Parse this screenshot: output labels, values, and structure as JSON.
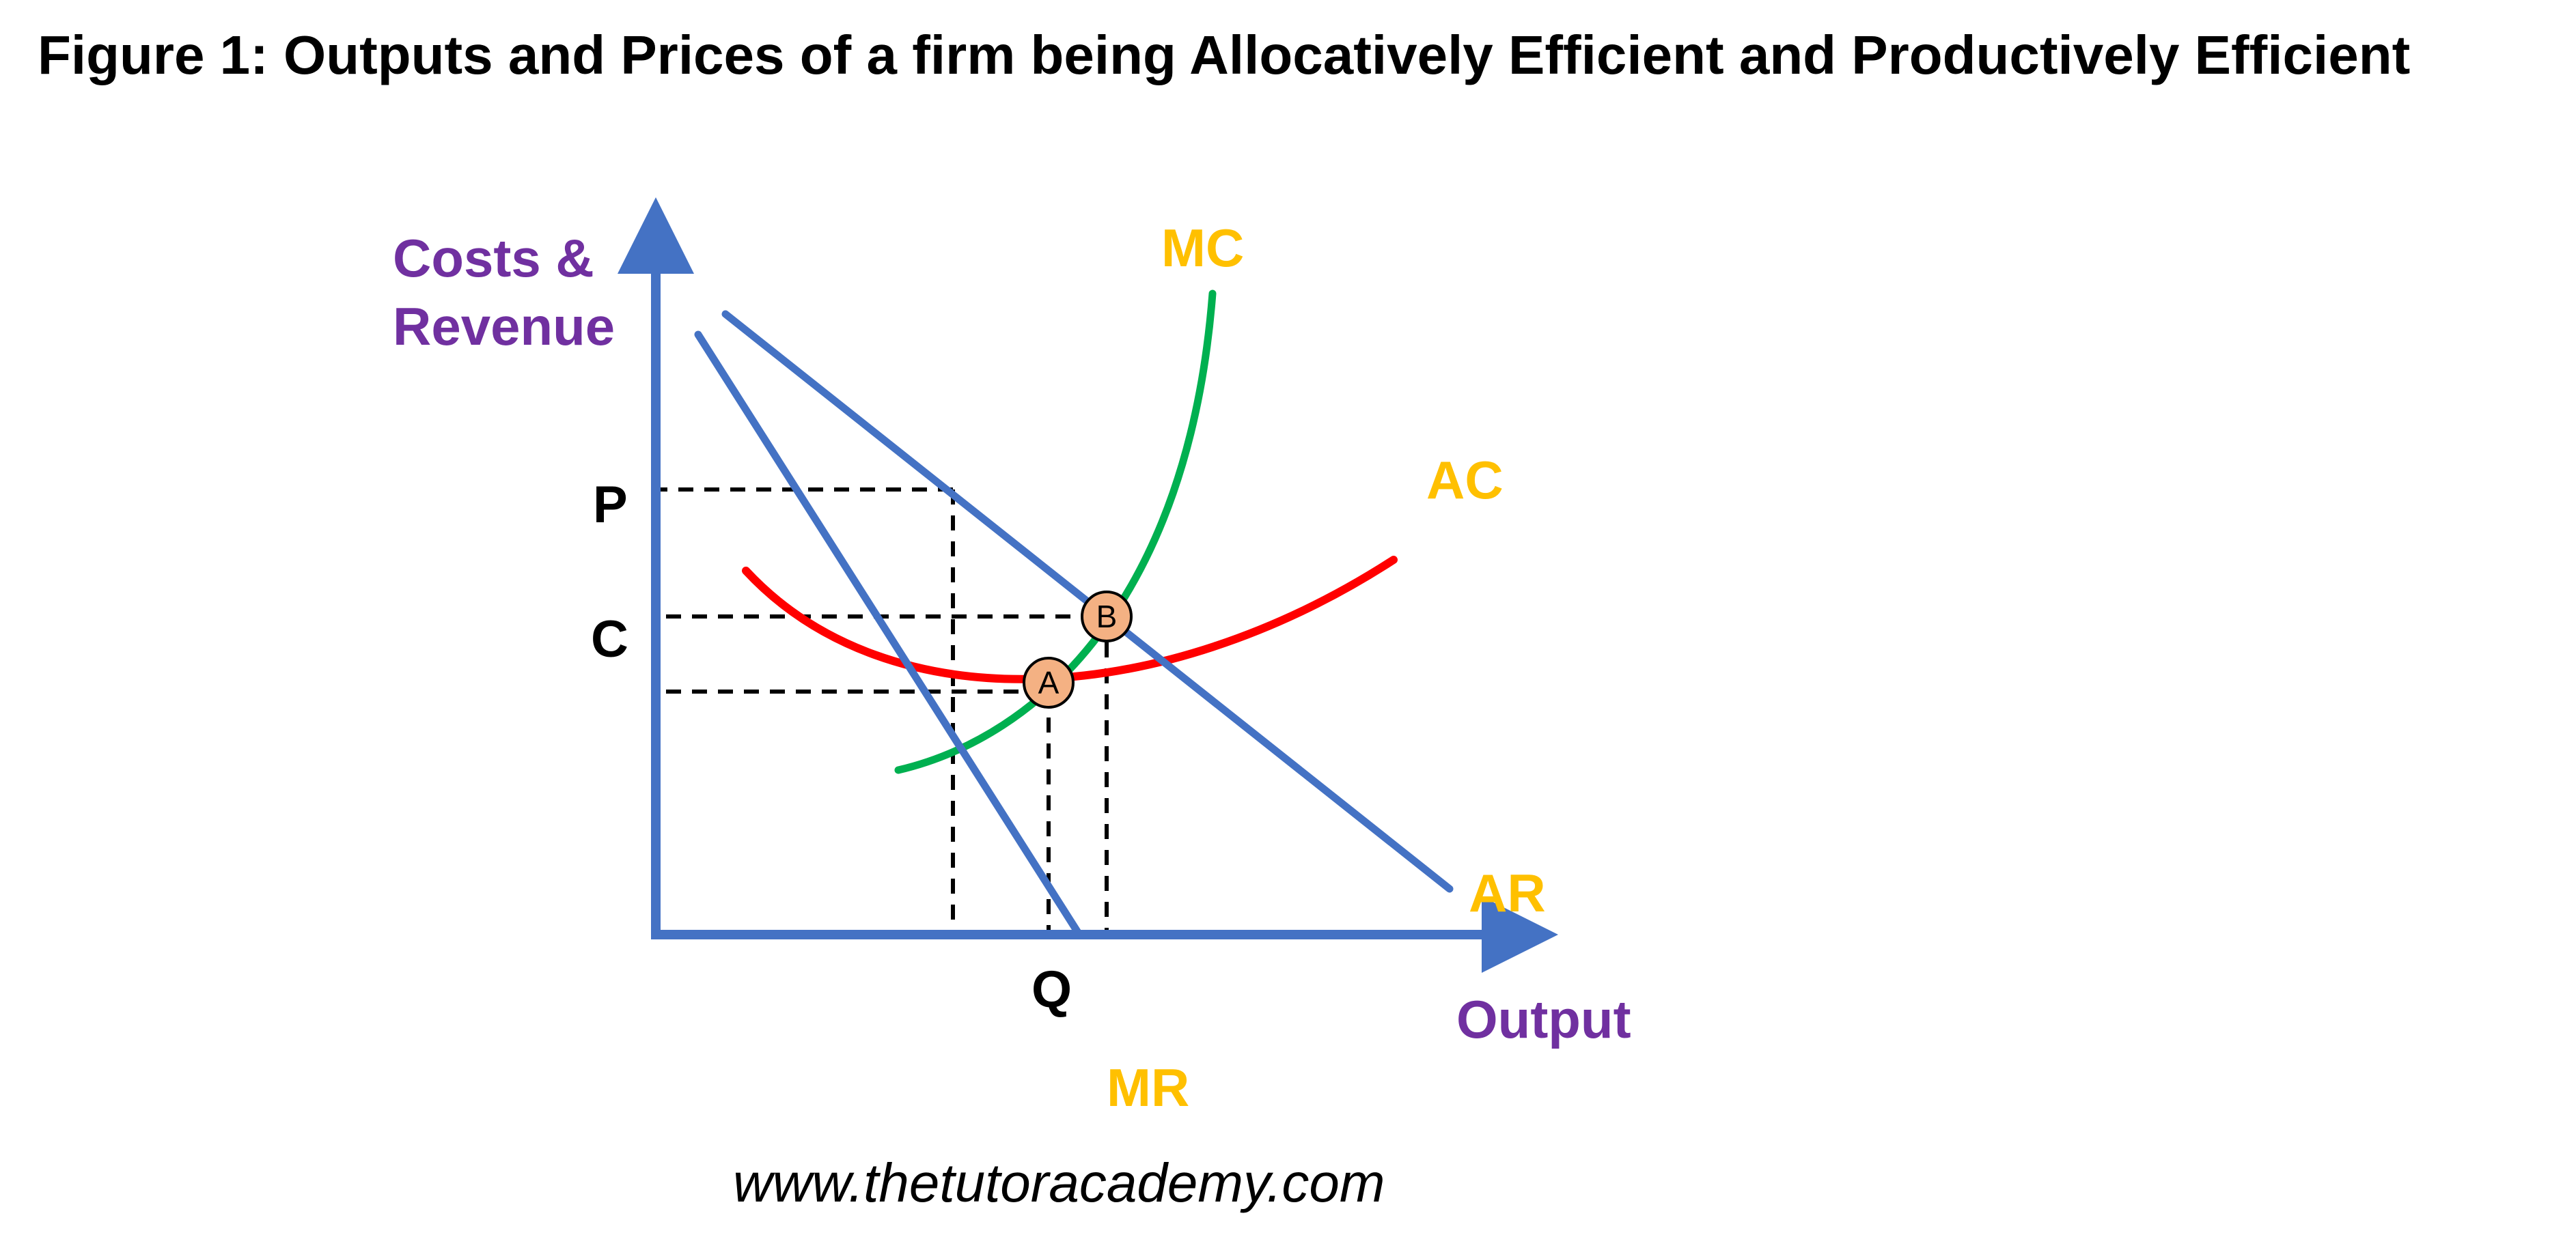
{
  "figure": {
    "title": "Figure 1: Outputs and Prices of a firm being Allocatively Efficient and Productively Efficient",
    "y_axis_label_line1": "Costs &",
    "y_axis_label_line2": "Revenue",
    "x_axis_label": "Output",
    "source": "www.thetutoracademy.com"
  },
  "curves": {
    "mc": "MC",
    "ac": "AC",
    "ar": "AR",
    "mr": "MR"
  },
  "ticks": {
    "p": "P",
    "c": "C",
    "q": "Q"
  },
  "points": {
    "a": "A",
    "b": "B"
  },
  "colors": {
    "title": "#000000",
    "axis": "#4472C4",
    "axis_label": "#7030A0",
    "curve_label": "#FFC000",
    "mc": "#00B050",
    "ac": "#FF0000",
    "demand": "#4472C4",
    "point_fill": "#F4B183",
    "guide": "#000000"
  }
}
